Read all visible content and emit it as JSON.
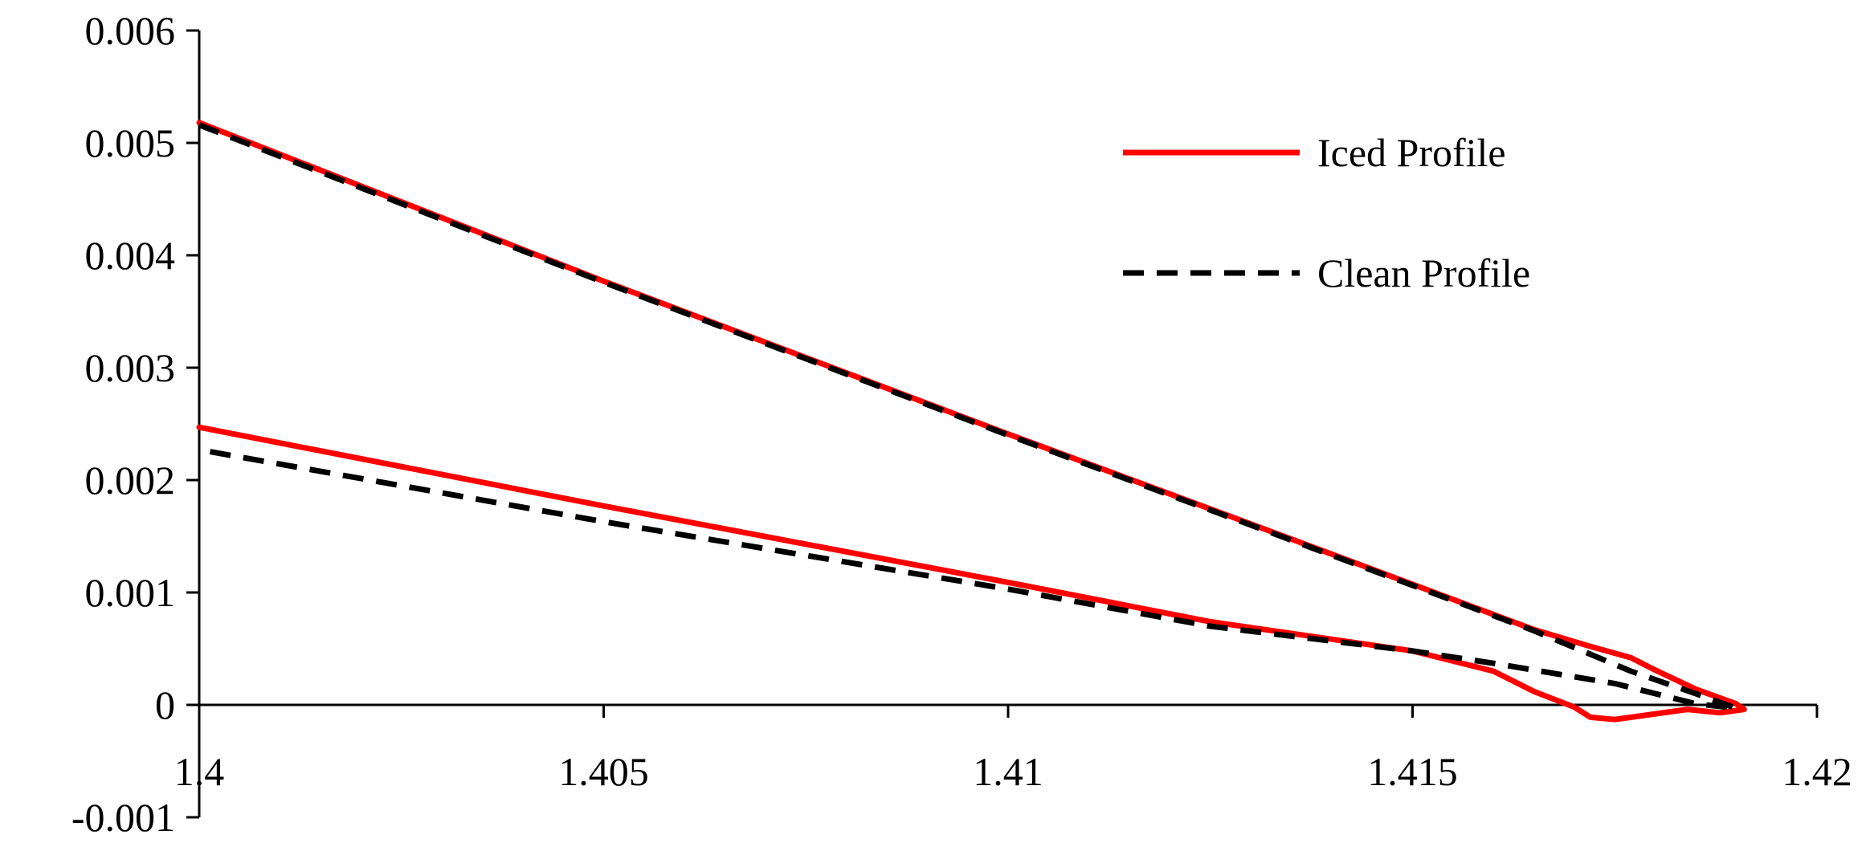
{
  "chart_data": {
    "type": "line",
    "title": "",
    "xlabel": "",
    "ylabel": "",
    "xlim": [
      1.4,
      1.42
    ],
    "ylim": [
      -0.001,
      0.006
    ],
    "x_ticks": [
      1.4,
      1.405,
      1.41,
      1.415,
      1.42
    ],
    "x_tick_labels": [
      "1.4",
      "1.405",
      "1.41",
      "1.415",
      "1.42"
    ],
    "y_ticks": [
      -0.001,
      0,
      0.001,
      0.002,
      0.003,
      0.004,
      0.005,
      0.006
    ],
    "y_tick_labels": [
      "-0.001",
      "0",
      "0.001",
      "0.002",
      "0.003",
      "0.004",
      "0.005",
      "0.006"
    ],
    "x_axis_crosses_y_at": 0,
    "grid": false,
    "legend_position": "top-right",
    "series": [
      {
        "name": "Iced Profile",
        "color": "#ff0000",
        "style": "solid",
        "points": [
          [
            1.4,
            0.00518
          ],
          [
            1.405,
            0.00377
          ],
          [
            1.41,
            0.00241
          ],
          [
            1.413,
            0.00161
          ],
          [
            1.4165,
            0.00067
          ],
          [
            1.4172,
            0.00052
          ],
          [
            1.4177,
            0.00042
          ],
          [
            1.418,
            0.00031
          ],
          [
            1.4185,
            0.00014
          ],
          [
            1.419,
            1e-05
          ],
          [
            1.4191,
            -4e-05
          ],
          [
            1.4188,
            -7e-05
          ],
          [
            1.4184,
            -4e-05
          ],
          [
            1.4179,
            -9e-05
          ],
          [
            1.4175,
            -0.00013
          ],
          [
            1.4172,
            -0.00011
          ],
          [
            1.417,
            -2e-05
          ],
          [
            1.4165,
            0.00012
          ],
          [
            1.416,
            0.0003
          ],
          [
            1.415,
            0.00048
          ],
          [
            1.4125,
            0.00074
          ],
          [
            1.41,
            0.00109
          ],
          [
            1.405,
            0.00177
          ],
          [
            1.4,
            0.00247
          ]
        ]
      },
      {
        "name": "Clean Profile",
        "color": "#000000",
        "style": "dashed",
        "points": [
          [
            1.4,
            0.00516
          ],
          [
            1.405,
            0.00376
          ],
          [
            1.41,
            0.0024
          ],
          [
            1.413,
            0.0016
          ],
          [
            1.4165,
            0.00066
          ],
          [
            1.4177,
            0.0003
          ],
          [
            1.4185,
            0.0001
          ],
          [
            1.419,
            -3e-05
          ],
          [
            1.4185,
            1e-05
          ],
          [
            1.4175,
            0.00019
          ],
          [
            1.416,
            0.00037
          ],
          [
            1.415,
            0.00048
          ],
          [
            1.4125,
            0.0007
          ],
          [
            1.41,
            0.00103
          ],
          [
            1.405,
            0.00163
          ],
          [
            1.4,
            0.00227
          ]
        ]
      }
    ]
  }
}
